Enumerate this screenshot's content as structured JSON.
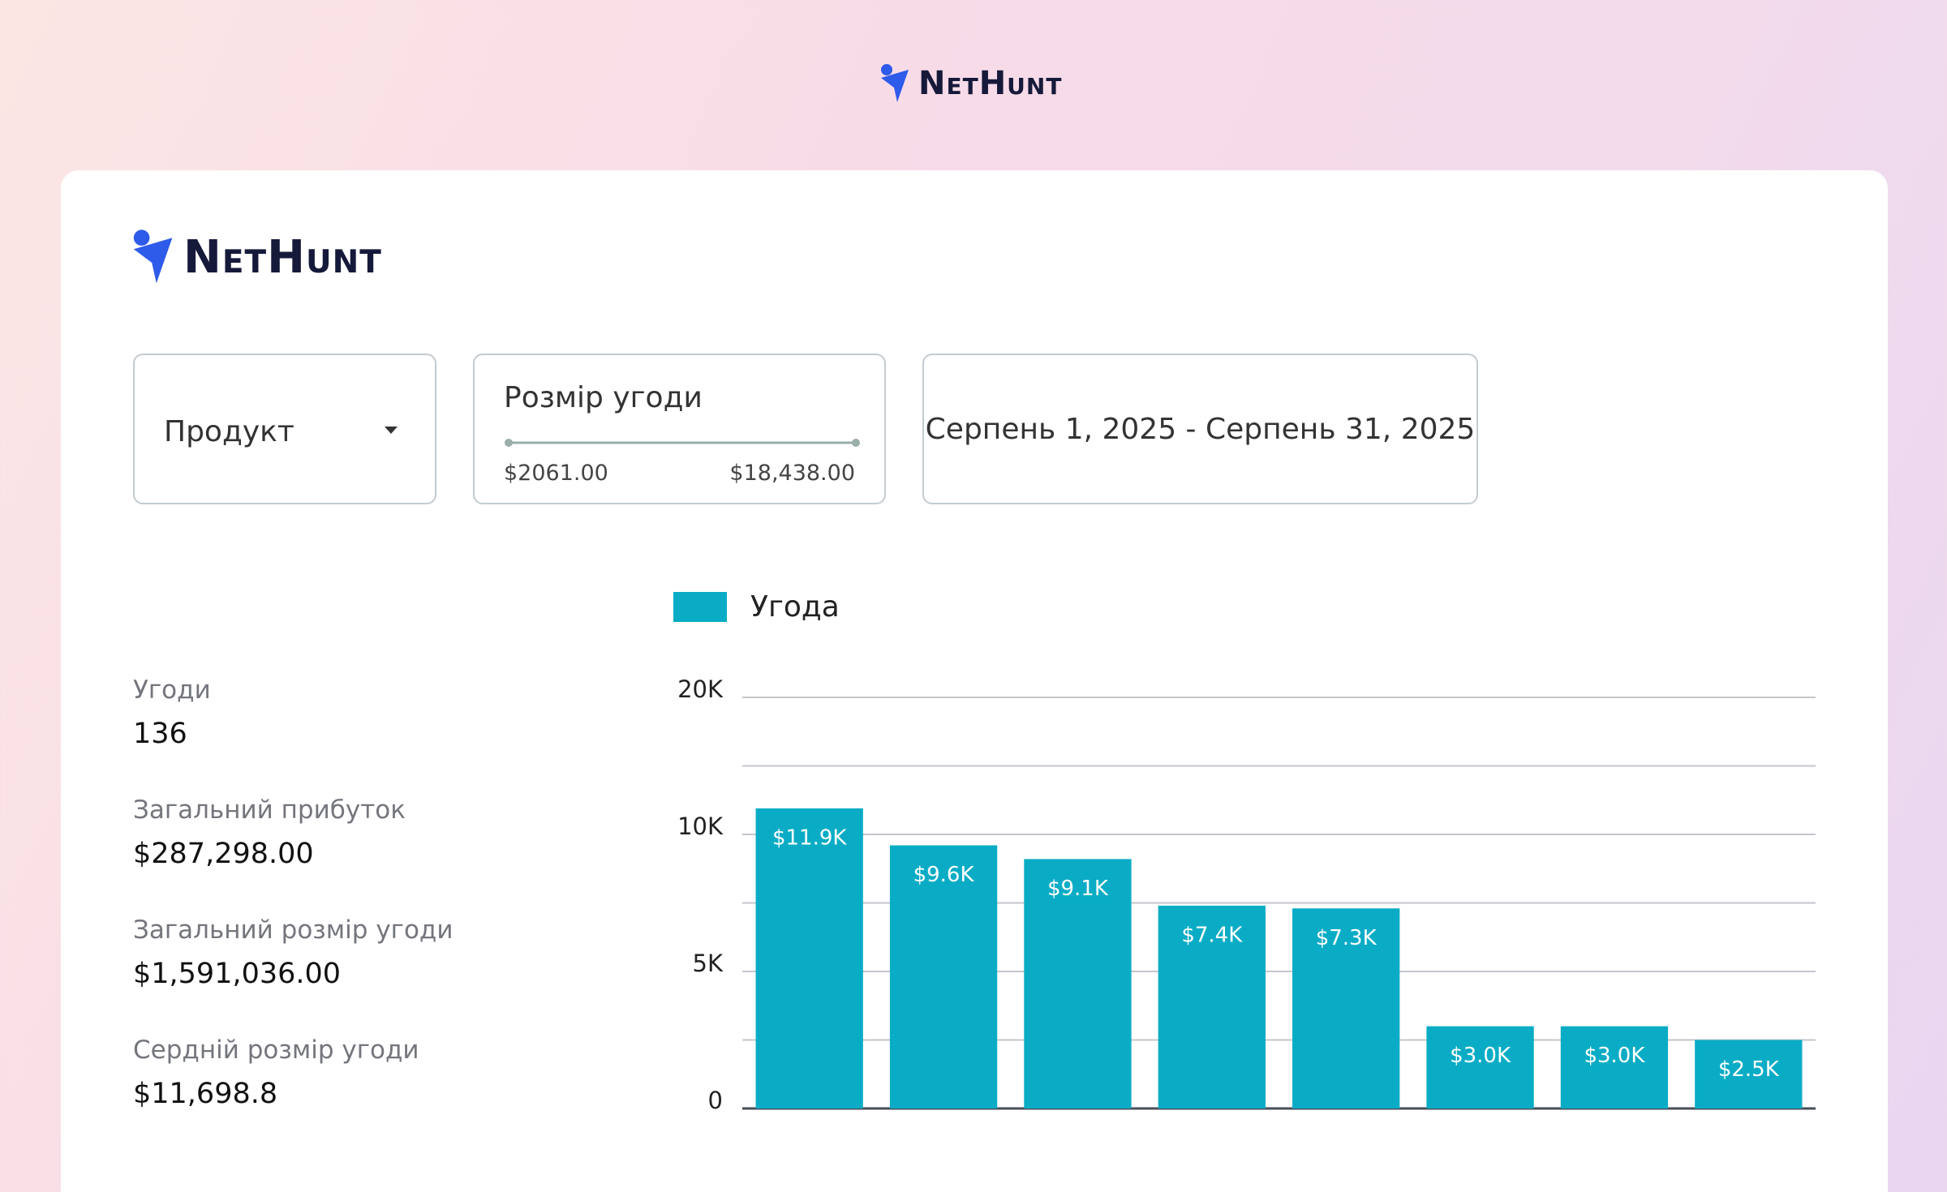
{
  "header": {
    "logo": "NetHunt"
  },
  "card": {
    "logo": "NetHunt"
  },
  "filters": {
    "product": "Продукт",
    "deal_size": {
      "label": "Розмір угоди",
      "min": "$2061.00",
      "max": "$18,438.00"
    },
    "date_range": "Серпень 1, 2025 - Серпень 31, 2025"
  },
  "stats": [
    {
      "label": "Угоди",
      "value": "136"
    },
    {
      "label": "Загальний прибуток",
      "value": "$287,298.00"
    },
    {
      "label": "Загальний розмір угоди",
      "value": "$1,591,036.00"
    },
    {
      "label": "Сердній розмір угоди",
      "value": "$11,698.8"
    }
  ],
  "chart_data": {
    "type": "bar",
    "categories": [
      null,
      null,
      null,
      null,
      null,
      null,
      null,
      null
    ],
    "series": [
      {
        "name": "Угода",
        "color": "#0aacc5",
        "values": [
          11900,
          9600,
          9100,
          7400,
          7300,
          3000,
          3000,
          2500
        ],
        "value_labels": [
          "$11.9K",
          "$9.6K",
          "$9.1K",
          "$7.4K",
          "$7.3K",
          "$3.0K",
          "$3.0K",
          "$2.5K"
        ]
      }
    ],
    "ylim": [
      0,
      20000
    ],
    "yticks": [
      {
        "value": 0,
        "label": "0"
      },
      {
        "value": 2500,
        "label": null
      },
      {
        "value": 5000,
        "label": "5K"
      },
      {
        "value": 7500,
        "label": null
      },
      {
        "value": 10000,
        "label": "10K"
      },
      {
        "value": 15000,
        "label": null
      },
      {
        "value": 20000,
        "label": "20K"
      }
    ],
    "grid": true
  }
}
